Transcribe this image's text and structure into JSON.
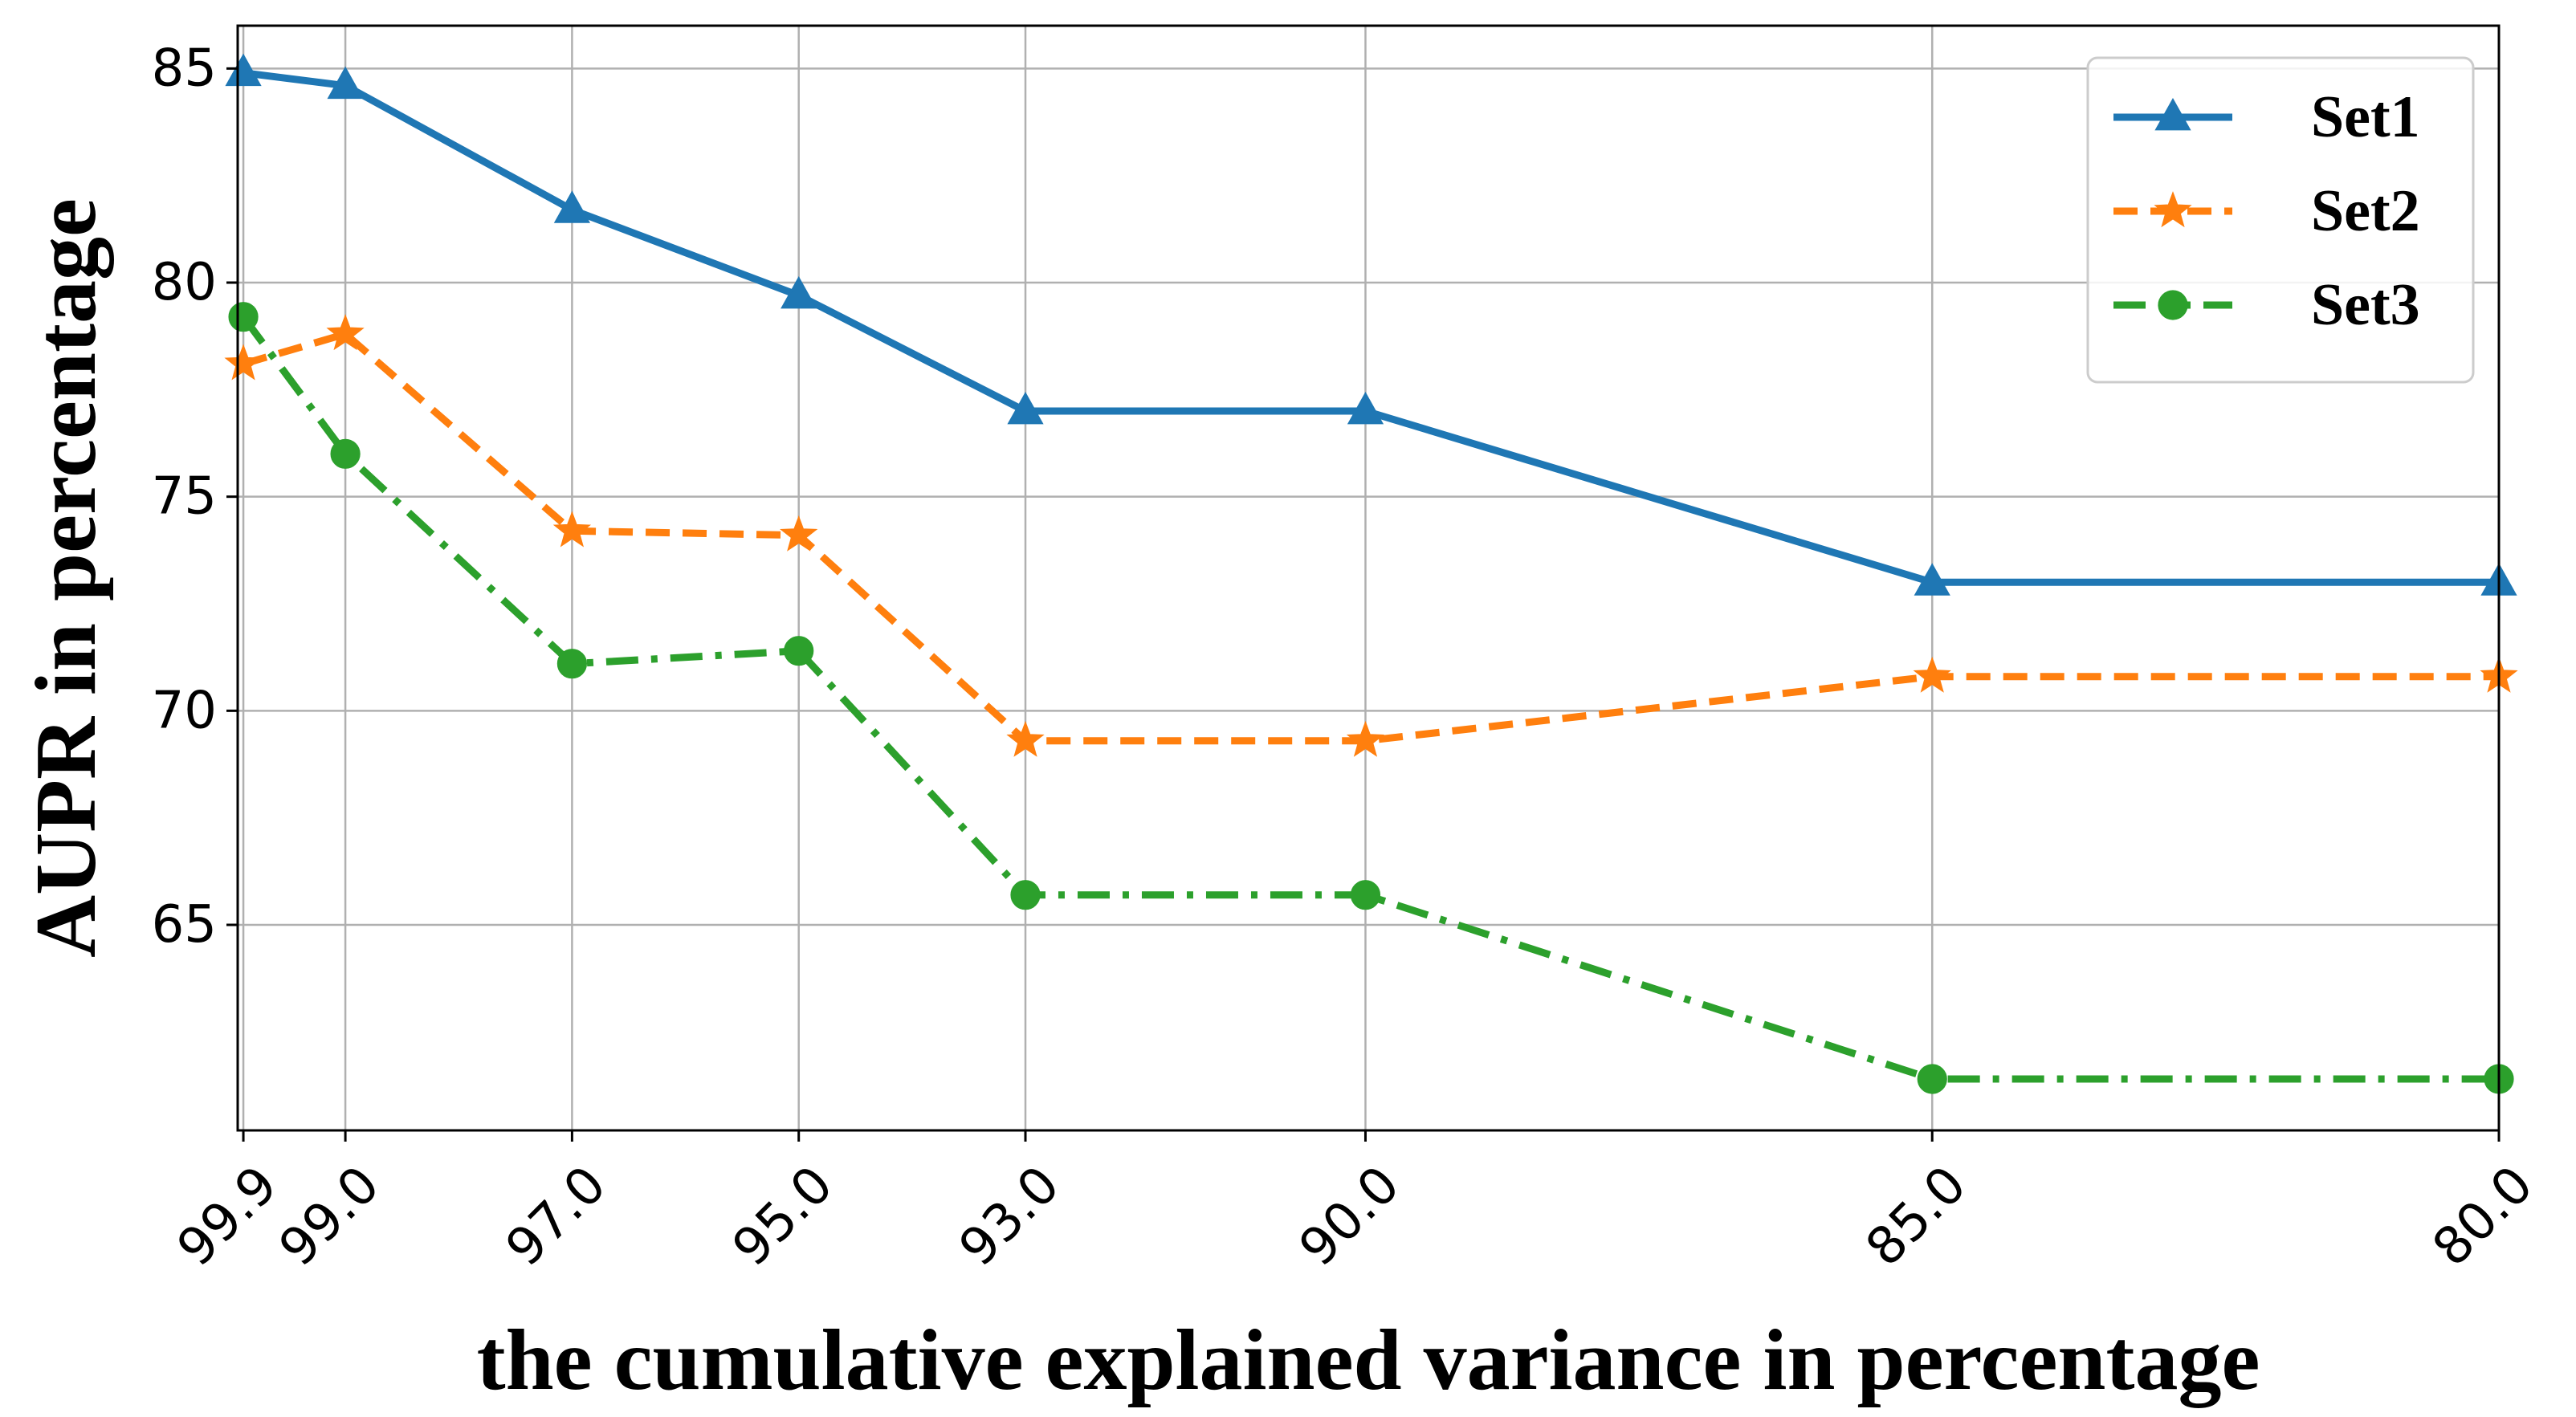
{
  "chart_data": {
    "type": "line",
    "xlabel": "the cumulative explained variance in percentage",
    "ylabel": "AUPR in percentage",
    "x": [
      99.9,
      99.0,
      97.0,
      95.0,
      93.0,
      90.0,
      85.0,
      80.0
    ],
    "x_tick_labels": [
      "99.9",
      "99.0",
      "97.0",
      "95.0",
      "93.0",
      "90.0",
      "85.0",
      "80.0"
    ],
    "x_axis_reversed": true,
    "xlim": [
      99.95,
      80.0
    ],
    "ylim": [
      60.2,
      86.0
    ],
    "y_ticks": [
      65,
      70,
      75,
      80,
      85
    ],
    "y_tick_labels": [
      "65",
      "70",
      "75",
      "80",
      "85"
    ],
    "grid": true,
    "legend_position": "top-right",
    "series": [
      {
        "name": "Set1",
        "color": "#1f77b4",
        "line_style": "solid",
        "marker": "triangle",
        "values": [
          84.9,
          84.6,
          81.7,
          79.7,
          77.0,
          77.0,
          73.0,
          73.0
        ]
      },
      {
        "name": "Set2",
        "color": "#ff7f0e",
        "line_style": "dashed",
        "marker": "star",
        "values": [
          78.1,
          78.8,
          74.2,
          74.1,
          69.3,
          69.3,
          70.8,
          70.8
        ]
      },
      {
        "name": "Set3",
        "color": "#2ca02c",
        "line_style": "dashdot",
        "marker": "circle",
        "values": [
          79.2,
          76.0,
          71.1,
          71.4,
          65.7,
          65.7,
          61.4,
          61.4
        ]
      }
    ]
  }
}
